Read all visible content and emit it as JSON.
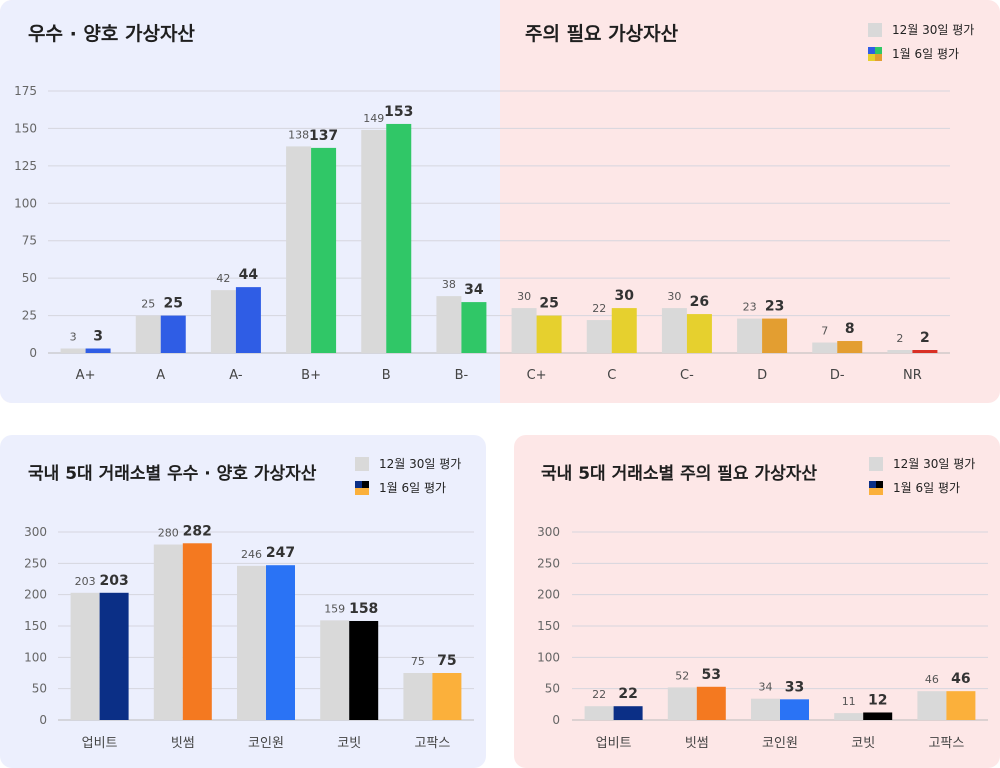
{
  "chart_data": [
    {
      "type": "bar",
      "left_title": "우수 · 양호 가상자산",
      "right_title": "주의 필요 가상자산",
      "legend": [
        "12월 30일 평가",
        "1월 6일 평가"
      ],
      "categories": [
        "A+",
        "A",
        "A-",
        "B+",
        "B",
        "B-",
        "C+",
        "C",
        "C-",
        "D",
        "D-",
        "NR"
      ],
      "series": [
        {
          "name": "12월 30일 평가",
          "values": [
            3,
            25,
            42,
            138,
            149,
            38,
            30,
            22,
            30,
            23,
            7,
            2
          ]
        },
        {
          "name": "1월 6일 평가",
          "values": [
            3,
            25,
            44,
            137,
            153,
            34,
            25,
            30,
            26,
            23,
            8,
            2
          ]
        }
      ],
      "ylim": [
        0,
        175
      ],
      "yticks": [
        0,
        25,
        50,
        75,
        100,
        125,
        150,
        175
      ],
      "colors": [
        "#2f5de5",
        "#2f5de5",
        "#2f5de5",
        "#30c767",
        "#30c767",
        "#30c767",
        "#e6d02e",
        "#e6d02e",
        "#e6d02e",
        "#e39e31",
        "#e39e31",
        "#d93025"
      ],
      "old_color": "#d9d9d9",
      "grid": true
    },
    {
      "type": "bar",
      "title": "국내 5대 거래소별 우수 · 양호 가상자산",
      "legend": [
        "12월 30일 평가",
        "1월 6일 평가"
      ],
      "categories": [
        "업비트",
        "빗썸",
        "코인원",
        "코빗",
        "고팍스"
      ],
      "series": [
        {
          "name": "12월 30일 평가",
          "values": [
            203,
            280,
            246,
            159,
            75
          ]
        },
        {
          "name": "1월 6일 평가",
          "values": [
            203,
            282,
            247,
            158,
            75
          ]
        }
      ],
      "ylim": [
        0,
        300
      ],
      "yticks": [
        0,
        50,
        100,
        150,
        200,
        250,
        300
      ],
      "colors": [
        "#0b2f86",
        "#f47920",
        "#2a73f5",
        "#000000",
        "#fbb03b"
      ],
      "old_color": "#d9d9d9",
      "grid": true
    },
    {
      "type": "bar",
      "title": "국내 5대 거래소별 주의 필요 가상자산",
      "legend": [
        "12월 30일 평가",
        "1월 6일 평가"
      ],
      "categories": [
        "업비트",
        "빗썸",
        "코인원",
        "코빗",
        "고팍스"
      ],
      "series": [
        {
          "name": "12월 30일 평가",
          "values": [
            22,
            52,
            34,
            11,
            46
          ]
        },
        {
          "name": "1월 6일 평가",
          "values": [
            22,
            53,
            33,
            12,
            46
          ]
        }
      ],
      "ylim": [
        0,
        300
      ],
      "yticks": [
        0,
        50,
        100,
        150,
        200,
        250,
        300
      ],
      "colors": [
        "#0b2f86",
        "#f47920",
        "#2a73f5",
        "#000000",
        "#fbb03b"
      ],
      "old_color": "#d9d9d9",
      "grid": true
    }
  ],
  "colors": {
    "good_bg": "#eceffd",
    "warn_bg": "#fde7e7"
  }
}
